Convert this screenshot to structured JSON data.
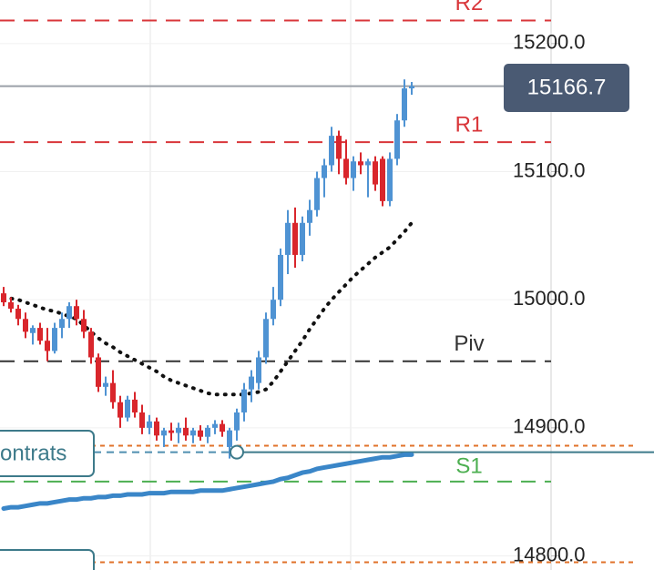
{
  "chart_data": {
    "type": "candlestick",
    "ylim": [
      14789,
      15234
    ],
    "yticks": [
      {
        "value": 15200,
        "label": "15200.0"
      },
      {
        "value": 15100,
        "label": "15100.0"
      },
      {
        "value": 15000,
        "label": "15000.0"
      },
      {
        "value": 14900,
        "label": "14900.0"
      },
      {
        "value": 14800,
        "label": "14800.0"
      }
    ],
    "up_color": "#4f93d3",
    "down_color": "#d9262c",
    "open": [
      15005,
      14998,
      14993,
      14985,
      14974,
      14978,
      14968,
      14960,
      14978,
      14985,
      14995,
      14985,
      14975,
      14955,
      14932,
      14935,
      14920,
      14908,
      14922,
      14912,
      14900,
      14905,
      14894,
      14898,
      14896,
      14900,
      14894,
      14898,
      14893,
      14900,
      14903,
      14885,
      14898,
      14912,
      14930,
      14935,
      14955,
      14985,
      15000,
      15035,
      15060,
      15035,
      15060,
      15070,
      15095,
      15105,
      15128,
      15110,
      15095,
      15108,
      15105,
      15108,
      15110,
      15077,
      15110,
      15140,
      15165
    ],
    "high": [
      15010,
      15002,
      14996,
      14990,
      14980,
      14982,
      14978,
      14982,
      14990,
      14998,
      15000,
      14992,
      14978,
      14958,
      14940,
      14945,
      14925,
      14925,
      14928,
      14918,
      14910,
      14908,
      14900,
      14904,
      14904,
      14908,
      14900,
      14902,
      14902,
      14906,
      14906,
      14900,
      14915,
      14935,
      14945,
      14960,
      14990,
      15010,
      15040,
      15070,
      15072,
      15065,
      15078,
      15100,
      15110,
      15135,
      15132,
      15125,
      15112,
      15115,
      15110,
      15112,
      15112,
      15115,
      15145,
      15172,
      15170
    ],
    "low": [
      14995,
      14990,
      14980,
      14970,
      14965,
      14965,
      14952,
      14958,
      14970,
      14978,
      14980,
      14970,
      14950,
      14928,
      14925,
      14915,
      14900,
      14905,
      14908,
      14895,
      14895,
      14890,
      14885,
      14890,
      14888,
      14890,
      14888,
      14890,
      14888,
      14895,
      14893,
      14876,
      14890,
      14905,
      14920,
      14930,
      14950,
      14980,
      14995,
      15020,
      15025,
      15030,
      15050,
      15065,
      15080,
      15100,
      15098,
      15090,
      15085,
      15098,
      15080,
      15085,
      15073,
      15073,
      15105,
      15135,
      15160
    ],
    "close": [
      14998,
      14993,
      14985,
      14975,
      14978,
      14968,
      14960,
      14978,
      14985,
      14995,
      14985,
      14975,
      14955,
      14932,
      14935,
      14920,
      14908,
      14922,
      14912,
      14900,
      14905,
      14894,
      14898,
      14896,
      14900,
      14894,
      14898,
      14893,
      14900,
      14903,
      14897,
      14898,
      14912,
      14930,
      14940,
      14955,
      14985,
      15000,
      15035,
      15060,
      15035,
      15060,
      15070,
      15095,
      15105,
      15128,
      15110,
      15095,
      15108,
      15105,
      15108,
      15090,
      15077,
      15110,
      15140,
      15165,
      15166.7
    ],
    "series": [
      {
        "color": "#111111",
        "style": "dotted",
        "values": [
          15003,
          15001,
          15000,
          14998,
          14996,
          14994,
          14992,
          14991,
          14989,
          14987,
          14985,
          14980,
          14975,
          14970,
          14966,
          14963,
          14959,
          14956,
          14953,
          14950,
          14947,
          14944,
          14940,
          14937,
          14935,
          14933,
          14931,
          14929,
          14927,
          14926,
          14926,
          14926,
          14926,
          14926,
          14927,
          14928,
          14930,
          14936,
          14944,
          14952,
          14960,
          14968,
          14977,
          14985,
          14993,
          15000,
          15006,
          15012,
          15018,
          15023,
          15028,
          15033,
          15037,
          15041,
          15047,
          15053,
          15060
        ]
      },
      {
        "color": "#3a86c8",
        "style": "solid",
        "values": [
          14837,
          14838,
          14838,
          14839,
          14840,
          14841,
          14841,
          14842,
          14843,
          14844,
          14844,
          14845,
          14845,
          14846,
          14846,
          14847,
          14847,
          14848,
          14848,
          14848,
          14849,
          14849,
          14849,
          14850,
          14850,
          14850,
          14850,
          14851,
          14851,
          14851,
          14851,
          14852,
          14853,
          14854,
          14855,
          14856,
          14857,
          14858,
          14860,
          14861,
          14863,
          14865,
          14866,
          14868,
          14869,
          14870,
          14871,
          14872,
          14873,
          14874,
          14875,
          14876,
          14877,
          14877,
          14878,
          14879,
          14879
        ]
      }
    ],
    "levels": [
      {
        "name": "R2",
        "value": 15218,
        "color": "#d9363a",
        "style": "dashed"
      },
      {
        "name": "R1",
        "value": 15123,
        "color": "#d9363a",
        "style": "dashed"
      },
      {
        "name": "Piv",
        "value": 14952,
        "color": "#333333",
        "style": "dashed"
      },
      {
        "name": "S1",
        "value": 14858,
        "color": "#4caf50",
        "style": "dashed"
      }
    ],
    "dotted_levels": [
      {
        "value": 14886,
        "color": "#e0722a"
      },
      {
        "value": 14795,
        "color": "#e0722a"
      }
    ],
    "position_line": {
      "value": 14881,
      "color": "#3d7a8a"
    },
    "last_price": 15166.7,
    "annotation": "ontrats"
  }
}
